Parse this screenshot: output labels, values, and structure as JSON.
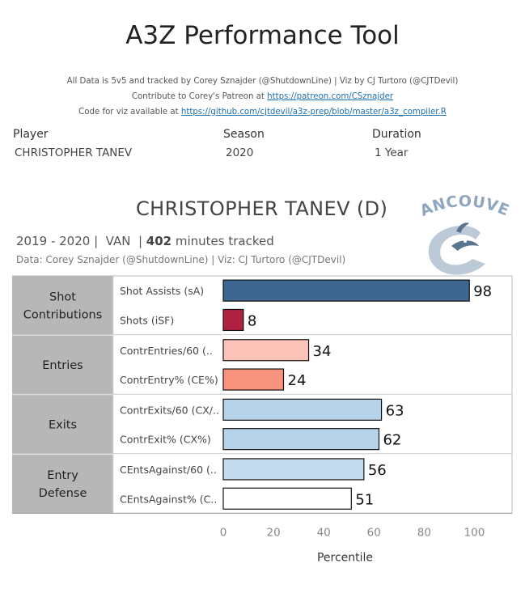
{
  "header": {
    "title": "A3Z Performance Tool",
    "credit_line1": "All Data is 5v5 and tracked by Corey Sznajder (@ShutdownLine) | Viz by CJ Turtoro (@CJTDevil)",
    "credit_line2_prefix": "Contribute to Corey's Patreon at ",
    "credit_line2_link": "https://patreon.com/CSznajder",
    "credit_line3_prefix": "Code for viz available at ",
    "credit_line3_link": "https://github.com/cjtdevil/a3z-prep/blob/master/a3z_compiler.R"
  },
  "filters": {
    "player_label": "Player",
    "player_value": "CHRISTOPHER TANEV",
    "season_label": "Season",
    "season_value": "2020",
    "duration_label": "Duration",
    "duration_value": "1 Year"
  },
  "panel": {
    "player_title": "CHRISTOPHER TANEV (D)",
    "meta_season": "2019 - 2020 |  VAN  | ",
    "meta_minutes": "402",
    "meta_suffix": " minutes tracked",
    "source": "Data: Corey Sznajder (@ShutdownLine) | Viz: CJ Turtoro (@CJTDevil)",
    "logo_text": "VANCOUVER",
    "logo_icon": "canucks-orca-logo"
  },
  "chart_data": {
    "type": "bar",
    "orientation": "horizontal",
    "xlabel": "Percentile",
    "xlim": [
      0,
      115
    ],
    "ticks": [
      0,
      20,
      40,
      60,
      80,
      100
    ],
    "groups": [
      {
        "name": "Shot Contributions",
        "metrics": [
          {
            "label": "Shot Assists (sA)",
            "value": 98,
            "color": "#3d6690"
          },
          {
            "label": "Shots (iSF)",
            "value": 8,
            "color": "#b0203f"
          }
        ]
      },
      {
        "name": "Entries",
        "metrics": [
          {
            "label": "ContrEntries/60 (..",
            "value": 34,
            "color": "#fbc3b7"
          },
          {
            "label": "ContrEntry% (CE%)",
            "value": 24,
            "color": "#f7927c"
          }
        ]
      },
      {
        "name": "Exits",
        "metrics": [
          {
            "label": "ContrExits/60 (CX/..",
            "value": 63,
            "color": "#b6d3ea"
          },
          {
            "label": "ContrExit% (CX%)",
            "value": 62,
            "color": "#b6d3ea"
          }
        ]
      },
      {
        "name": "Entry Defense",
        "metrics": [
          {
            "label": "CEntsAgainst/60 (..",
            "value": 56,
            "color": "#c4dcee"
          },
          {
            "label": "CEntsAgainst% (C..",
            "value": 51,
            "color": "#ffffff"
          }
        ]
      }
    ]
  }
}
